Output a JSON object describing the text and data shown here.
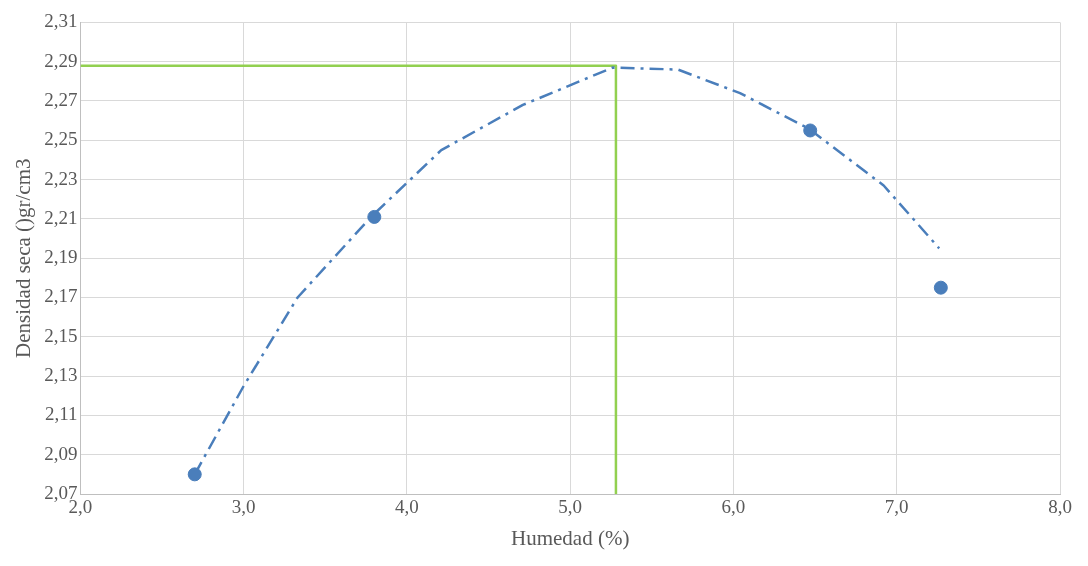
{
  "chart_data": {
    "type": "scatter",
    "xlabel": "Humedad (%)",
    "ylabel": "Densidad seca ()gr/cm3",
    "xlim": [
      2.0,
      8.0
    ],
    "ylim": [
      2.07,
      2.31
    ],
    "xticks": [
      {
        "value": 2,
        "label": "2,0"
      },
      {
        "value": 3,
        "label": "3,0"
      },
      {
        "value": 4,
        "label": "4,0"
      },
      {
        "value": 5,
        "label": "5,0"
      },
      {
        "value": 6,
        "label": "6,0"
      },
      {
        "value": 7,
        "label": "7,0"
      },
      {
        "value": 8,
        "label": "8,0"
      }
    ],
    "yticks": [
      {
        "value": 2.07,
        "label": "2,07"
      },
      {
        "value": 2.09,
        "label": "2,09"
      },
      {
        "value": 2.11,
        "label": "2,11"
      },
      {
        "value": 2.13,
        "label": "2,13"
      },
      {
        "value": 2.15,
        "label": "2,15"
      },
      {
        "value": 2.17,
        "label": "2,17"
      },
      {
        "value": 2.19,
        "label": "2,19"
      },
      {
        "value": 2.21,
        "label": "2,21"
      },
      {
        "value": 2.23,
        "label": "2,23"
      },
      {
        "value": 2.25,
        "label": "2,25"
      },
      {
        "value": 2.27,
        "label": "2,27"
      },
      {
        "value": 2.29,
        "label": "2,29"
      },
      {
        "value": 2.31,
        "label": "2,31"
      }
    ],
    "grid": true,
    "legend": false,
    "series": [
      {
        "color": "#4a7ebb",
        "marker": "circle",
        "x": [
          2.7,
          3.8,
          6.47,
          7.27
        ],
        "values": [
          2.08,
          2.211,
          2.255,
          2.175
        ]
      },
      {
        "type": "line",
        "color": "#4a7ebb",
        "marker": "none",
        "line_style": "dashed",
        "x": [
          2.7,
          3.0,
          3.33,
          3.78,
          4.21,
          4.71,
          5.26,
          5.66,
          6.04,
          6.46,
          6.92,
          7.26
        ],
        "values": [
          2.08,
          2.125,
          2.17,
          2.211,
          2.245,
          2.268,
          2.287,
          2.286,
          2.274,
          2.256,
          2.227,
          2.195
        ]
      },
      {
        "type": "line",
        "color": "#92d050",
        "marker": "none",
        "line_style": "solid",
        "x": [
          2.0,
          5.28,
          5.28
        ],
        "values": [
          2.288,
          2.288,
          2.07
        ]
      }
    ]
  }
}
